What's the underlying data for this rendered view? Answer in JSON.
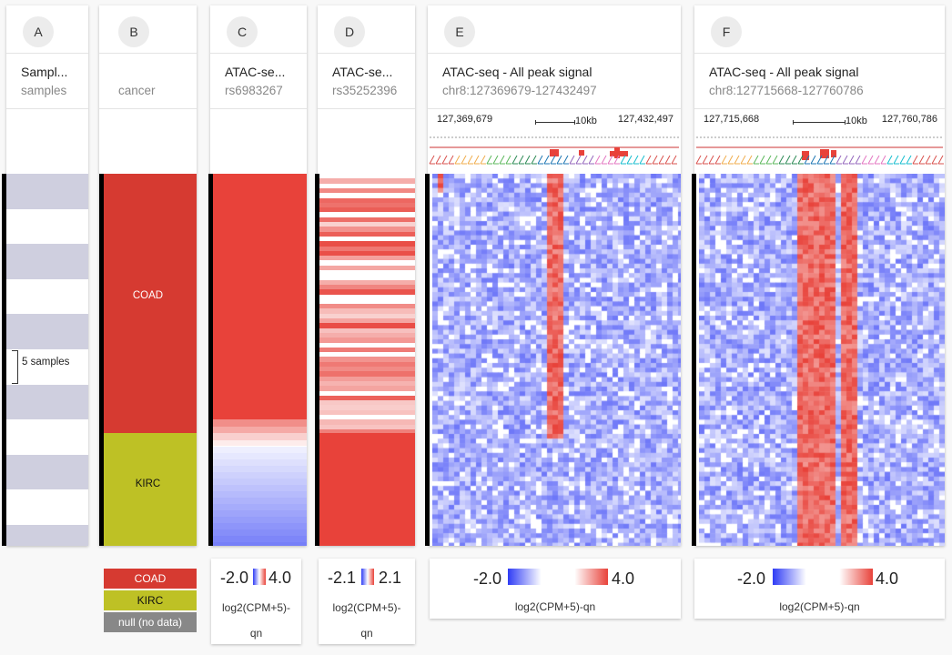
{
  "columns": [
    {
      "id": "A",
      "title": "Sampl...",
      "subtitle": "samples"
    },
    {
      "id": "B",
      "title": "",
      "subtitle": "cancer"
    },
    {
      "id": "C",
      "title": "ATAC-se...",
      "subtitle": "rs6983267"
    },
    {
      "id": "D",
      "title": "ATAC-se...",
      "subtitle": "rs35252396"
    },
    {
      "id": "E",
      "title": "ATAC-seq - All peak signal",
      "subtitle": "chr8:127369679-127432497"
    },
    {
      "id": "F",
      "title": "ATAC-seq - All peak signal",
      "subtitle": "chr8:127715668-127760786"
    }
  ],
  "samples_annotation": "5 samples",
  "cancer_groups": [
    {
      "label": "COAD",
      "color": "#d63a31",
      "fraction": 0.7
    },
    {
      "label": "KIRC",
      "color": "#bec125",
      "fraction": 0.3
    }
  ],
  "tracks": {
    "E": {
      "start": "127,369,679",
      "end": "127,432,497",
      "scale": "10kb"
    },
    "F": {
      "start": "127,715,668",
      "end": "127,760,786",
      "scale": "10kb"
    }
  },
  "legends": {
    "B": [
      {
        "label": "COAD",
        "color": "#d63a31"
      },
      {
        "label": "KIRC",
        "color": "#bec125"
      },
      {
        "label": "null (no data)",
        "color": "#888888"
      }
    ],
    "C": {
      "min": "-2.0",
      "max": "4.0",
      "label1": "log2(CPM+5)-",
      "label2": "qn"
    },
    "D": {
      "min": "-2.1",
      "max": "2.1",
      "label1": "log2(CPM+5)-",
      "label2": "qn"
    },
    "E": {
      "min": "-2.0",
      "max": "4.0",
      "label": "log2(CPM+5)-qn"
    },
    "F": {
      "min": "-2.0",
      "max": "4.0",
      "label": "log2(CPM+5)-qn"
    }
  },
  "colors": {
    "red": "#e8423a",
    "blue": "#2f3cf5",
    "stripe": "#cfcfdf",
    "kirc": "#bec125",
    "coad": "#d63a31"
  }
}
